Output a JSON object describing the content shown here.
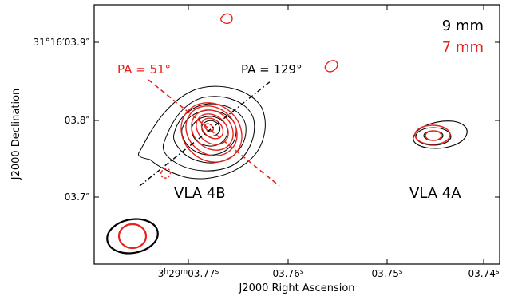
{
  "chart_data": {
    "type": "contour",
    "xlabel": "J2000 Right Ascension",
    "ylabel": "J2000 Declination",
    "x_ticks": [
      {
        "value": 3.77,
        "label_main": "3",
        "label_h": "h",
        "label_mid": "29",
        "label_m": "m",
        "label_sec": "03.77",
        "label_s": "s"
      },
      {
        "value": 3.76,
        "label_sec": "03.76",
        "label_s": "s"
      },
      {
        "value": 3.75,
        "label_sec": "03.75",
        "label_s": "s"
      },
      {
        "value": 3.74,
        "label_sec": "03.74",
        "label_s": "s"
      }
    ],
    "y_ticks": [
      {
        "value": 3.9,
        "label": "31°16′03.9″"
      },
      {
        "value": 3.8,
        "label": "03.8″"
      },
      {
        "value": 3.7,
        "label": "03.7″"
      }
    ],
    "xlim": [
      3.781,
      3.738
    ],
    "ylim": [
      3.616,
      3.95
    ],
    "legend": {
      "placement": "top-right",
      "entries": [
        {
          "label": "9 mm",
          "color": "#000000"
        },
        {
          "label": "7 mm",
          "color": "#e8221c"
        }
      ]
    },
    "sources": [
      {
        "name": "VLA 4B",
        "x": 3.7695,
        "y": 3.79
      },
      {
        "name": "VLA 4A",
        "x": 3.7445,
        "y": 3.78
      }
    ],
    "position_angle_lines": [
      {
        "label": "PA = 51°",
        "pa_deg": 51,
        "color": "#e8221c",
        "style": "dashed"
      },
      {
        "label": "PA = 129°",
        "pa_deg": 129,
        "color": "#000000",
        "style": "dash-dot"
      }
    ],
    "beams": [
      {
        "band": "9 mm",
        "color": "#000000"
      },
      {
        "band": "7 mm",
        "color": "#e8221c"
      }
    ]
  }
}
